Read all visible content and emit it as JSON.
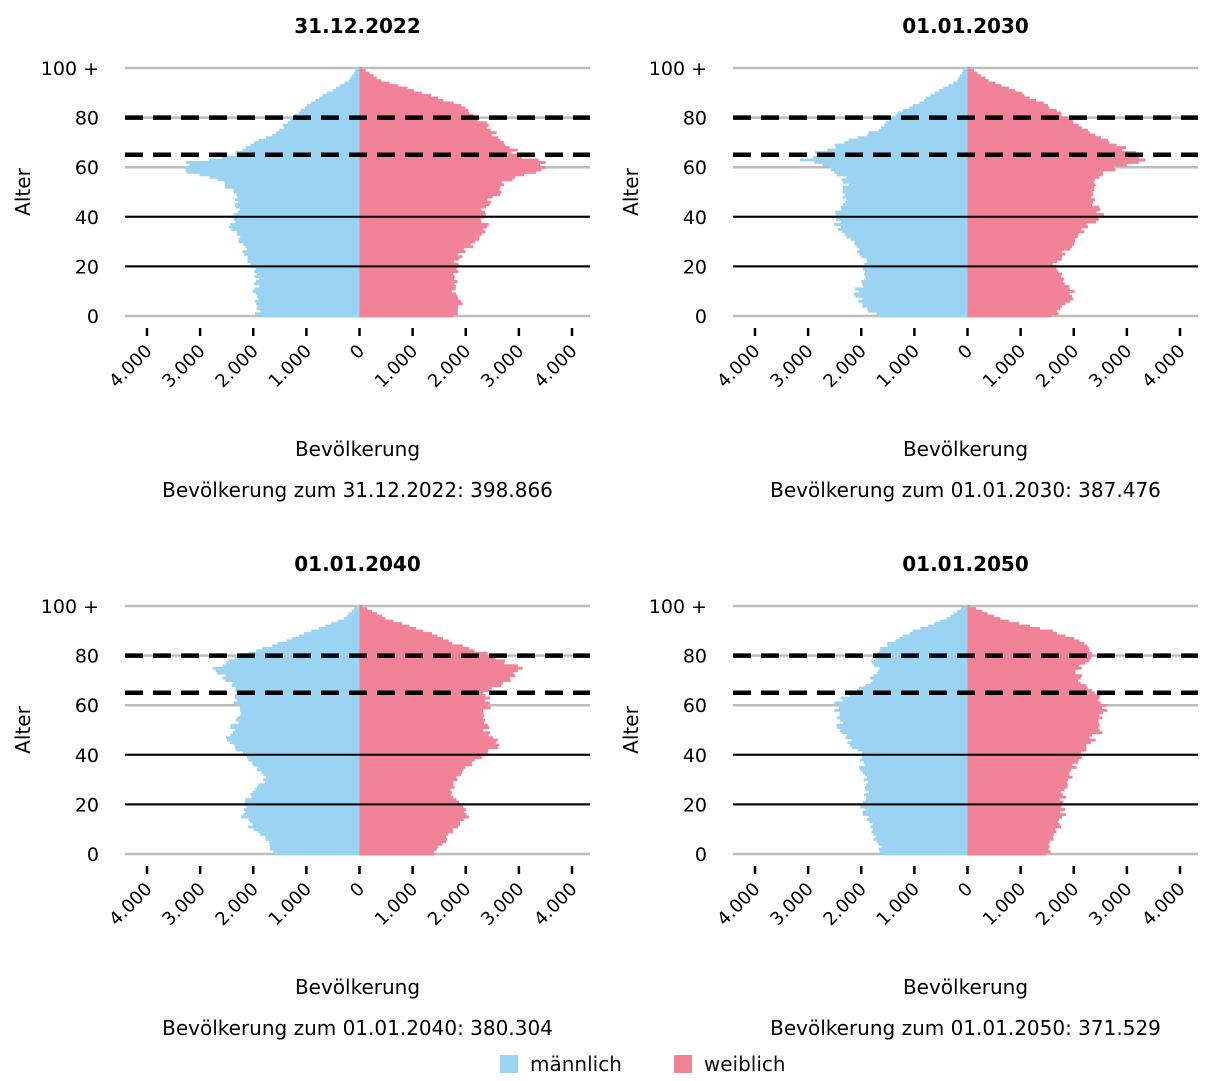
{
  "colors": {
    "male": "#9BD3F2",
    "female": "#F18398",
    "grid": "#BDBDBD",
    "line": "#000000"
  },
  "legend": {
    "male_label": "männlich",
    "female_label": "weiblich"
  },
  "chart_data": [
    {
      "type": "bar",
      "orientation": "horizontal-population-pyramid",
      "title": "31.12.2022",
      "xlabel": "Bevölkerung",
      "ylabel": "Alter",
      "caption": "Bevölkerung zum 31.12.2022: 398.866",
      "x_ticks": [
        "4.000",
        "3.000",
        "2.000",
        "1.000",
        "0",
        "1.000",
        "2.000",
        "3.000",
        "4.000"
      ],
      "y_ticks": [
        "0",
        "20",
        "40",
        "60",
        "80",
        "100 +"
      ],
      "xlim": [
        -4000,
        4000
      ],
      "ylim": [
        0,
        100
      ],
      "reference_lines": {
        "dashed": [
          65,
          80
        ],
        "solid": [
          20,
          40
        ]
      },
      "series": [
        {
          "name": "männlich",
          "anchors": [
            [
              0,
              1900
            ],
            [
              5,
              1950
            ],
            [
              10,
              1950
            ],
            [
              15,
              1900
            ],
            [
              20,
              2000
            ],
            [
              25,
              2200
            ],
            [
              30,
              2200
            ],
            [
              35,
              2400
            ],
            [
              40,
              2300
            ],
            [
              45,
              2300
            ],
            [
              50,
              2400
            ],
            [
              55,
              2600
            ],
            [
              58,
              3300
            ],
            [
              60,
              3400
            ],
            [
              62,
              3200
            ],
            [
              65,
              2400
            ],
            [
              70,
              2000
            ],
            [
              75,
              1500
            ],
            [
              80,
              1300
            ],
            [
              85,
              1000
            ],
            [
              90,
              600
            ],
            [
              95,
              200
            ],
            [
              100,
              50
            ]
          ]
        },
        {
          "name": "weiblich",
          "anchors": [
            [
              0,
              1800
            ],
            [
              5,
              1900
            ],
            [
              10,
              1800
            ],
            [
              15,
              1800
            ],
            [
              20,
              1800
            ],
            [
              25,
              1900
            ],
            [
              30,
              2200
            ],
            [
              35,
              2400
            ],
            [
              40,
              2300
            ],
            [
              45,
              2400
            ],
            [
              50,
              2600
            ],
            [
              55,
              2800
            ],
            [
              58,
              3300
            ],
            [
              60,
              3500
            ],
            [
              62,
              3400
            ],
            [
              65,
              3000
            ],
            [
              70,
              2700
            ],
            [
              75,
              2500
            ],
            [
              80,
              2200
            ],
            [
              85,
              1900
            ],
            [
              90,
              1200
            ],
            [
              95,
              400
            ],
            [
              100,
              50
            ]
          ]
        }
      ]
    },
    {
      "type": "bar",
      "orientation": "horizontal-population-pyramid",
      "title": "01.01.2030",
      "xlabel": "Bevölkerung",
      "ylabel": "Alter",
      "caption": "Bevölkerung zum 01.01.2030: 387.476",
      "x_ticks": [
        "4.000",
        "3.000",
        "2.000",
        "1.000",
        "0",
        "1.000",
        "2.000",
        "3.000",
        "4.000"
      ],
      "y_ticks": [
        "0",
        "20",
        "40",
        "60",
        "80",
        "100 +"
      ],
      "xlim": [
        -4000,
        4000
      ],
      "ylim": [
        0,
        100
      ],
      "reference_lines": {
        "dashed": [
          65,
          80
        ],
        "solid": [
          20,
          40
        ]
      },
      "series": [
        {
          "name": "männlich",
          "anchors": [
            [
              0,
              1700
            ],
            [
              5,
              2000
            ],
            [
              10,
              2100
            ],
            [
              15,
              1900
            ],
            [
              20,
              1900
            ],
            [
              25,
              2000
            ],
            [
              30,
              2200
            ],
            [
              35,
              2400
            ],
            [
              40,
              2500
            ],
            [
              45,
              2400
            ],
            [
              50,
              2300
            ],
            [
              55,
              2300
            ],
            [
              60,
              2600
            ],
            [
              63,
              3100
            ],
            [
              65,
              2900
            ],
            [
              70,
              2300
            ],
            [
              75,
              1700
            ],
            [
              80,
              1500
            ],
            [
              85,
              1000
            ],
            [
              90,
              600
            ],
            [
              95,
              200
            ],
            [
              100,
              50
            ]
          ]
        },
        {
          "name": "weiblich",
          "anchors": [
            [
              0,
              1600
            ],
            [
              5,
              1900
            ],
            [
              10,
              2000
            ],
            [
              15,
              1800
            ],
            [
              20,
              1600
            ],
            [
              25,
              1800
            ],
            [
              30,
              2000
            ],
            [
              35,
              2200
            ],
            [
              40,
              2500
            ],
            [
              45,
              2400
            ],
            [
              50,
              2300
            ],
            [
              55,
              2400
            ],
            [
              60,
              2800
            ],
            [
              63,
              3300
            ],
            [
              65,
              3200
            ],
            [
              70,
              2700
            ],
            [
              75,
              2300
            ],
            [
              80,
              1900
            ],
            [
              85,
              1500
            ],
            [
              90,
              1000
            ],
            [
              95,
              400
            ],
            [
              100,
              50
            ]
          ]
        }
      ]
    },
    {
      "type": "bar",
      "orientation": "horizontal-population-pyramid",
      "title": "01.01.2040",
      "xlabel": "Bevölkerung",
      "ylabel": "Alter",
      "caption": "Bevölkerung zum 01.01.2040: 380.304",
      "x_ticks": [
        "4.000",
        "3.000",
        "2.000",
        "1.000",
        "0",
        "1.000",
        "2.000",
        "3.000",
        "4.000"
      ],
      "y_ticks": [
        "0",
        "20",
        "40",
        "60",
        "80",
        "100 +"
      ],
      "xlim": [
        -4000,
        4000
      ],
      "ylim": [
        0,
        100
      ],
      "reference_lines": {
        "dashed": [
          65,
          80
        ],
        "solid": [
          20,
          40
        ]
      },
      "series": [
        {
          "name": "männlich",
          "anchors": [
            [
              0,
              1600
            ],
            [
              5,
              1700
            ],
            [
              10,
              2000
            ],
            [
              15,
              2200
            ],
            [
              20,
              2200
            ],
            [
              25,
              2000
            ],
            [
              30,
              1800
            ],
            [
              35,
              1900
            ],
            [
              40,
              2200
            ],
            [
              45,
              2500
            ],
            [
              50,
              2400
            ],
            [
              55,
              2300
            ],
            [
              60,
              2300
            ],
            [
              65,
              2300
            ],
            [
              70,
              2500
            ],
            [
              75,
              2700
            ],
            [
              80,
              2300
            ],
            [
              85,
              1500
            ],
            [
              90,
              900
            ],
            [
              95,
              300
            ],
            [
              100,
              50
            ]
          ]
        },
        {
          "name": "weiblich",
          "anchors": [
            [
              0,
              1400
            ],
            [
              5,
              1600
            ],
            [
              10,
              1800
            ],
            [
              15,
              2000
            ],
            [
              20,
              1900
            ],
            [
              25,
              1700
            ],
            [
              30,
              1800
            ],
            [
              35,
              2000
            ],
            [
              40,
              2400
            ],
            [
              45,
              2600
            ],
            [
              50,
              2400
            ],
            [
              55,
              2400
            ],
            [
              60,
              2400
            ],
            [
              65,
              2400
            ],
            [
              70,
              2800
            ],
            [
              75,
              3000
            ],
            [
              80,
              2500
            ],
            [
              85,
              1800
            ],
            [
              90,
              1200
            ],
            [
              95,
              500
            ],
            [
              100,
              50
            ]
          ]
        }
      ]
    },
    {
      "type": "bar",
      "orientation": "horizontal-population-pyramid",
      "title": "01.01.2050",
      "xlabel": "Bevölkerung",
      "ylabel": "Alter",
      "caption": "Bevölkerung zum 01.01.2050: 371.529",
      "x_ticks": [
        "4.000",
        "3.000",
        "2.000",
        "1.000",
        "0",
        "1.000",
        "2.000",
        "3.000",
        "4.000"
      ],
      "y_ticks": [
        "0",
        "20",
        "40",
        "60",
        "80",
        "100 +"
      ],
      "xlim": [
        -4000,
        4000
      ],
      "ylim": [
        0,
        100
      ],
      "reference_lines": {
        "dashed": [
          65,
          80
        ],
        "solid": [
          20,
          40
        ]
      },
      "series": [
        {
          "name": "männlich",
          "anchors": [
            [
              0,
              1600
            ],
            [
              5,
              1700
            ],
            [
              10,
              1800
            ],
            [
              15,
              1900
            ],
            [
              20,
              2000
            ],
            [
              25,
              1900
            ],
            [
              30,
              1900
            ],
            [
              35,
              2000
            ],
            [
              40,
              2000
            ],
            [
              45,
              2200
            ],
            [
              50,
              2400
            ],
            [
              55,
              2400
            ],
            [
              60,
              2500
            ],
            [
              65,
              2200
            ],
            [
              70,
              1800
            ],
            [
              75,
              1700
            ],
            [
              80,
              1800
            ],
            [
              85,
              1500
            ],
            [
              90,
              1000
            ],
            [
              95,
              400
            ],
            [
              100,
              50
            ]
          ]
        },
        {
          "name": "weiblich",
          "anchors": [
            [
              0,
              1500
            ],
            [
              5,
              1600
            ],
            [
              10,
              1700
            ],
            [
              15,
              1800
            ],
            [
              20,
              1800
            ],
            [
              25,
              1800
            ],
            [
              30,
              1900
            ],
            [
              35,
              2000
            ],
            [
              40,
              2100
            ],
            [
              45,
              2300
            ],
            [
              50,
              2500
            ],
            [
              55,
              2500
            ],
            [
              60,
              2600
            ],
            [
              65,
              2400
            ],
            [
              70,
              2100
            ],
            [
              75,
              2100
            ],
            [
              80,
              2400
            ],
            [
              85,
              2200
            ],
            [
              90,
              1600
            ],
            [
              95,
              600
            ],
            [
              100,
              50
            ]
          ]
        }
      ]
    }
  ]
}
